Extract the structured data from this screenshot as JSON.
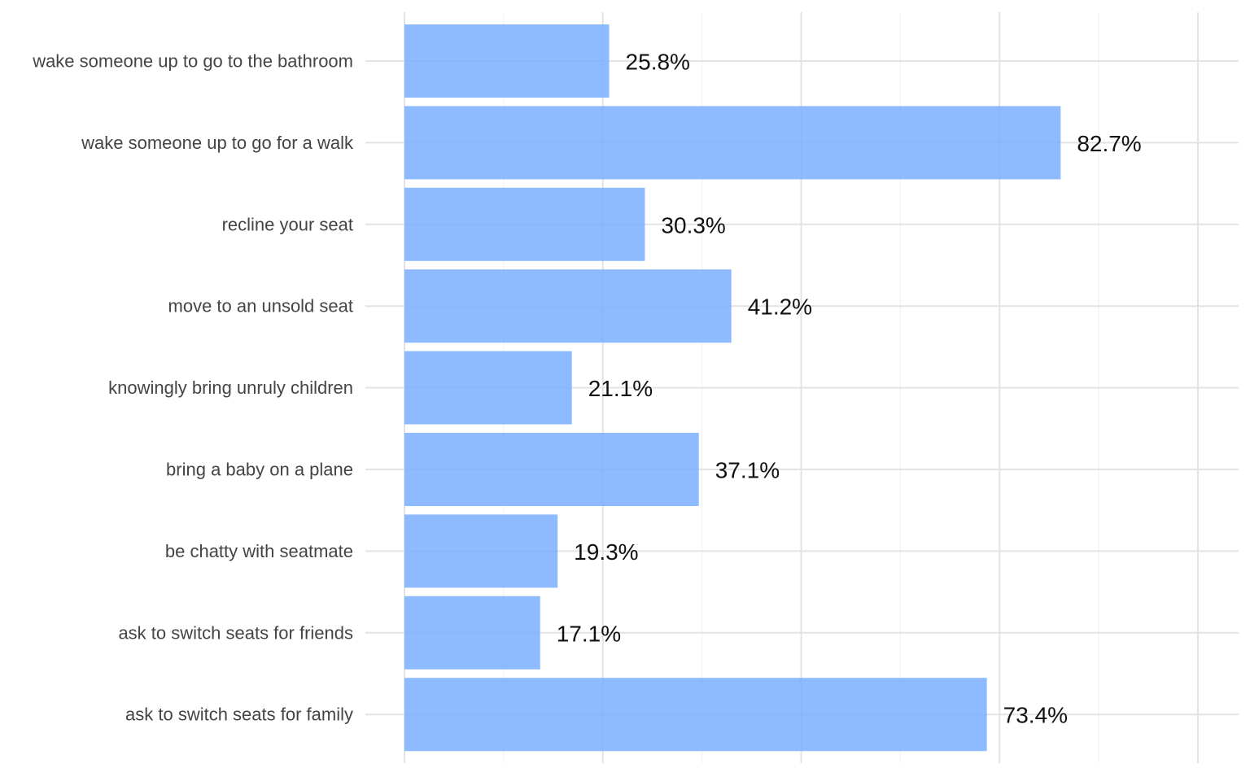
{
  "chart_data": {
    "type": "bar",
    "orientation": "horizontal",
    "categories": [
      "wake someone up to go to the bathroom",
      "wake someone up to go for a walk",
      "recline your seat",
      "move to an unsold seat",
      "knowingly bring unruly children",
      "bring a baby on a plane",
      "be chatty with seatmate",
      "ask to switch seats for friends",
      "ask to switch seats for family"
    ],
    "values": [
      25.8,
      82.7,
      30.3,
      41.2,
      21.1,
      37.1,
      19.3,
      17.1,
      73.4
    ],
    "value_labels": [
      "25.8%",
      "82.7%",
      "30.3%",
      "41.2%",
      "21.1%",
      "37.1%",
      "19.3%",
      "17.1%",
      "73.4%"
    ],
    "title": "",
    "xlabel": "",
    "ylabel": "",
    "xlim": [
      0,
      100
    ],
    "grid": true,
    "bar_color": "#7aaeff"
  }
}
